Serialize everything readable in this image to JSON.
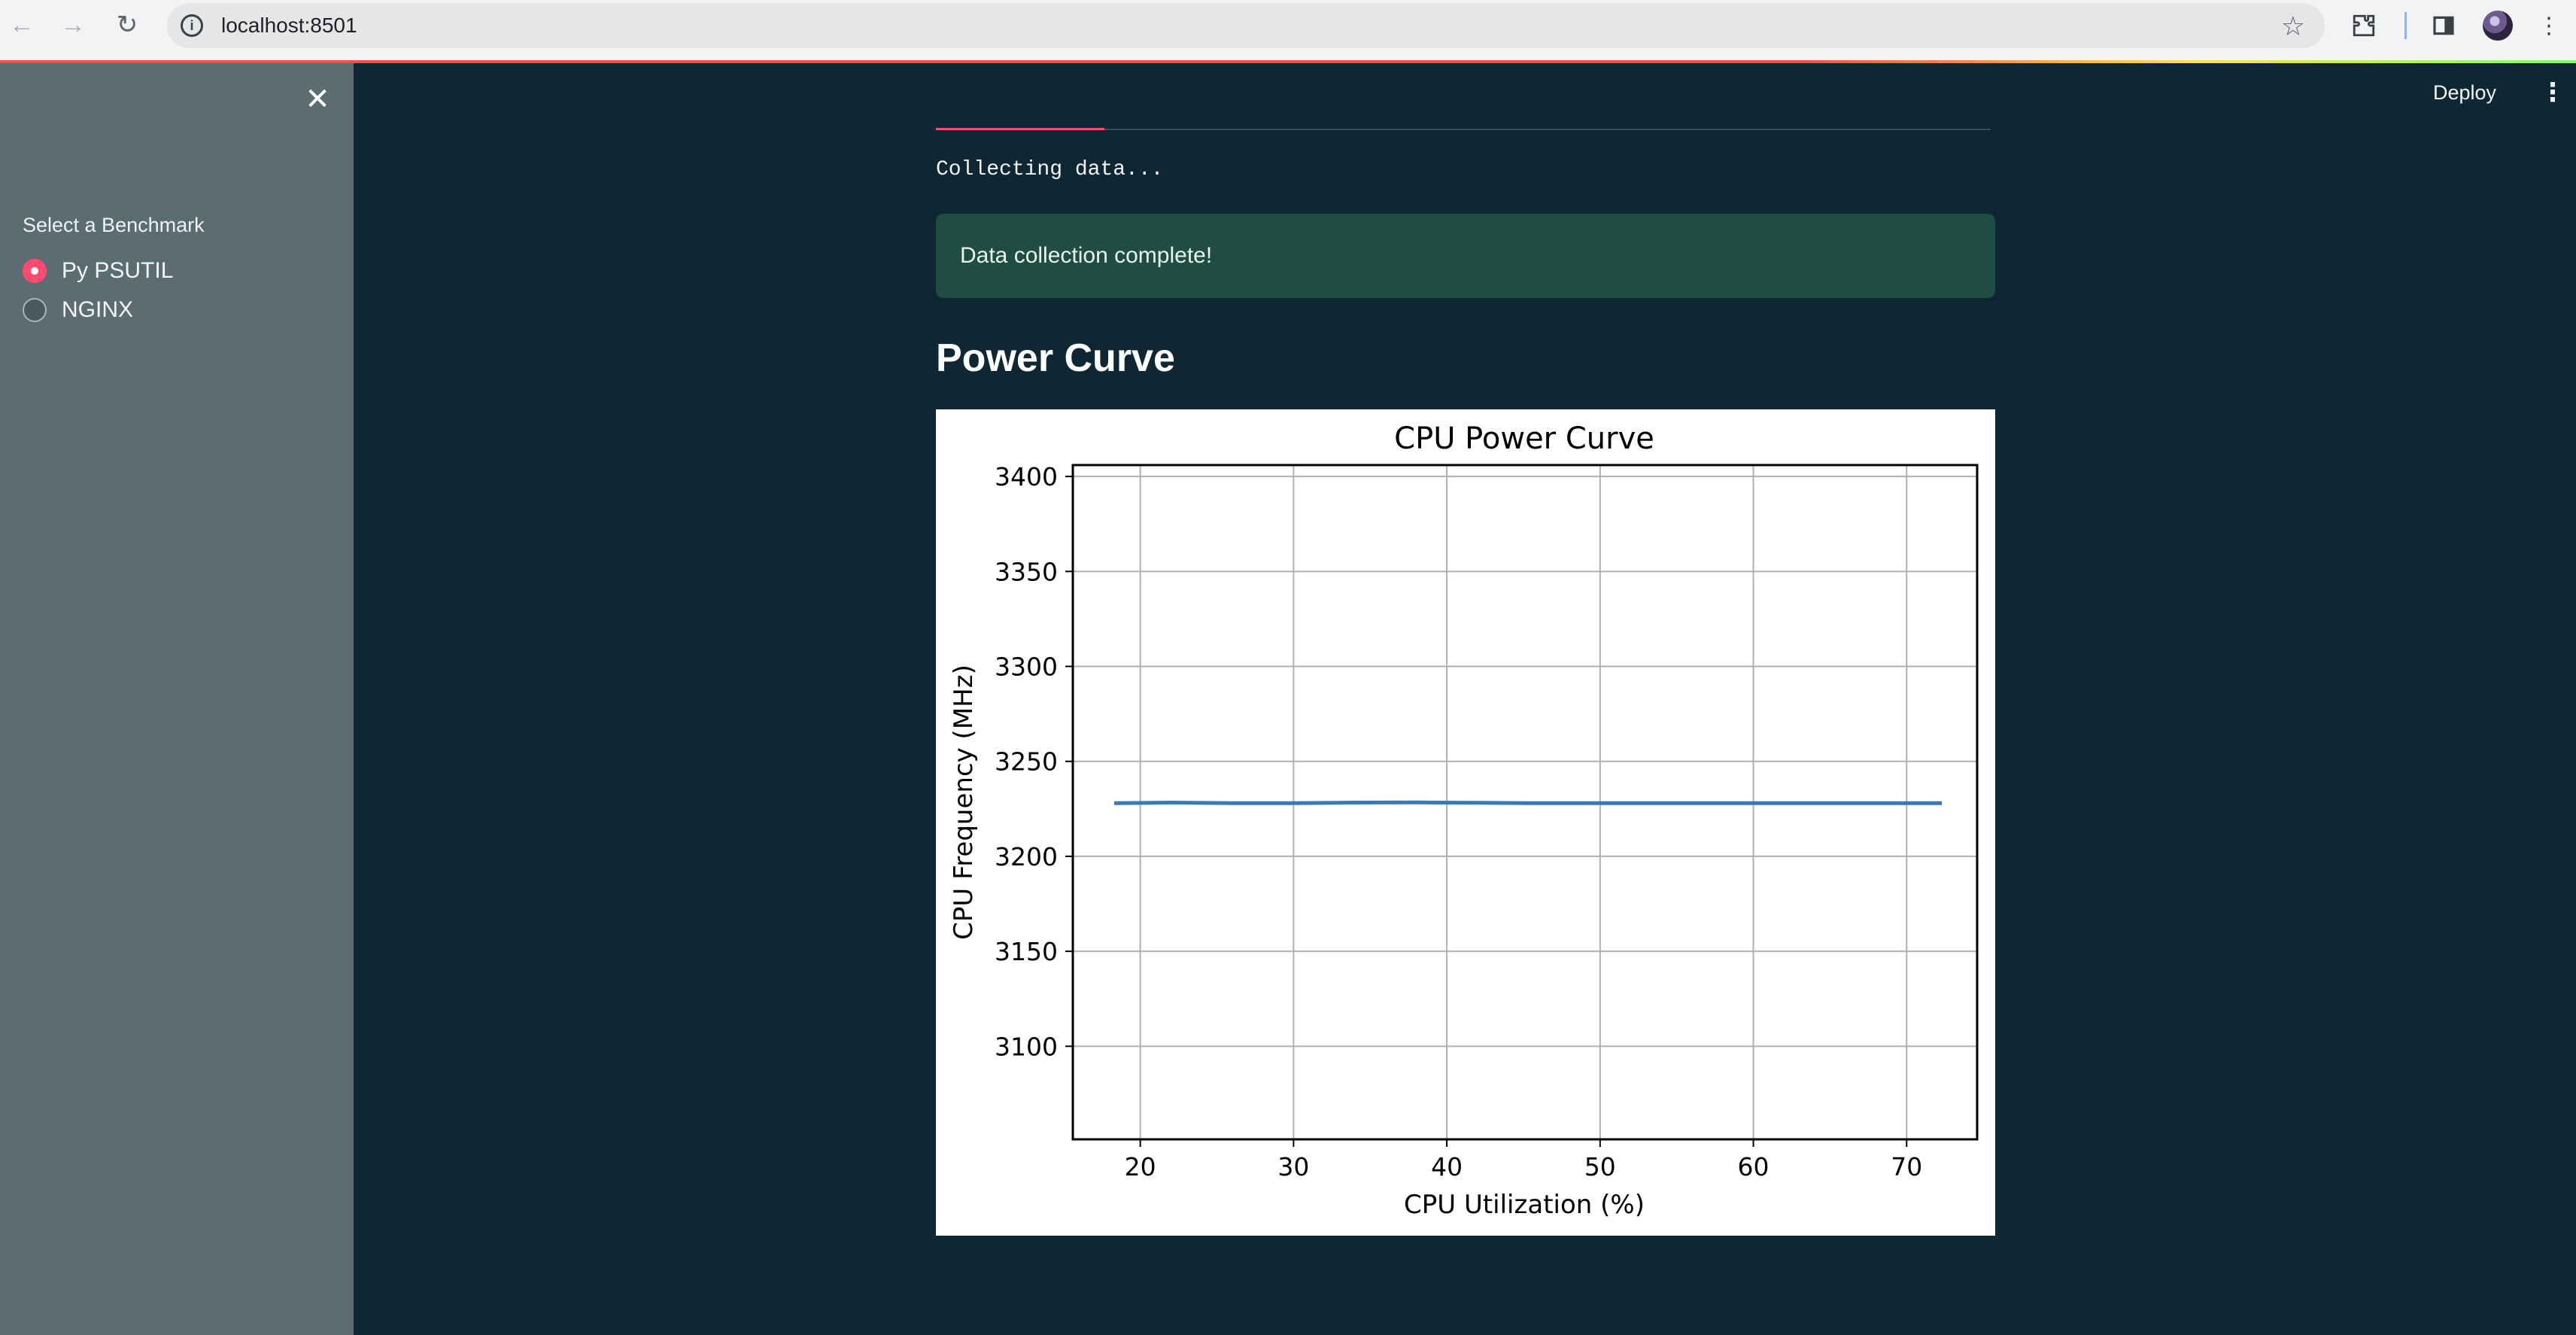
{
  "browser": {
    "url": "localhost:8501",
    "icons": {
      "back": "back-arrow-icon",
      "forward": "forward-arrow-icon",
      "reload": "reload-icon",
      "site_info": "info-icon",
      "bookmark": "star-icon",
      "extensions": "puzzle-icon",
      "side_panel": "side-panel-icon",
      "menu": "kebab-menu-icon"
    }
  },
  "sidebar": {
    "radio_label": "Select a Benchmark",
    "options": [
      {
        "label": "Py PSUTIL",
        "checked": true
      },
      {
        "label": "NGINX",
        "checked": false
      }
    ],
    "close_icon": "close-icon"
  },
  "header": {
    "deploy_label": "Deploy",
    "menu_icon": "kebab-menu-icon"
  },
  "main": {
    "progress_value": 0.16,
    "collecting_text": "Collecting data...",
    "success_text": "Data collection complete!",
    "section_title": "Power Curve"
  },
  "colors": {
    "accent": "#ff4b6e",
    "background": "#0e2733",
    "sidebar": "#5b6c73",
    "success_bg": "#1f4d42",
    "line": "#3a78b8"
  },
  "chart_data": {
    "type": "line",
    "title": "CPU Power Curve",
    "xlabel": "CPU Utilization (%)",
    "ylabel": "CPU Frequency (MHz)",
    "xlim": [
      15.6,
      74.6
    ],
    "ylim": [
      3051,
      3406
    ],
    "grid": true,
    "xticks": [
      20,
      30,
      40,
      50,
      60,
      70
    ],
    "yticks": [
      3100,
      3150,
      3200,
      3250,
      3300,
      3350,
      3400
    ],
    "series": [
      {
        "name": "CPU Frequency",
        "x": [
          18.3,
          22,
          26,
          30,
          34,
          38,
          42,
          46,
          50,
          54,
          58,
          62,
          66,
          70,
          72.3
        ],
        "y": [
          3228,
          3228.3,
          3228,
          3228,
          3228.3,
          3228.4,
          3228.2,
          3228,
          3228,
          3228,
          3228,
          3228,
          3228,
          3228,
          3228
        ]
      }
    ]
  }
}
